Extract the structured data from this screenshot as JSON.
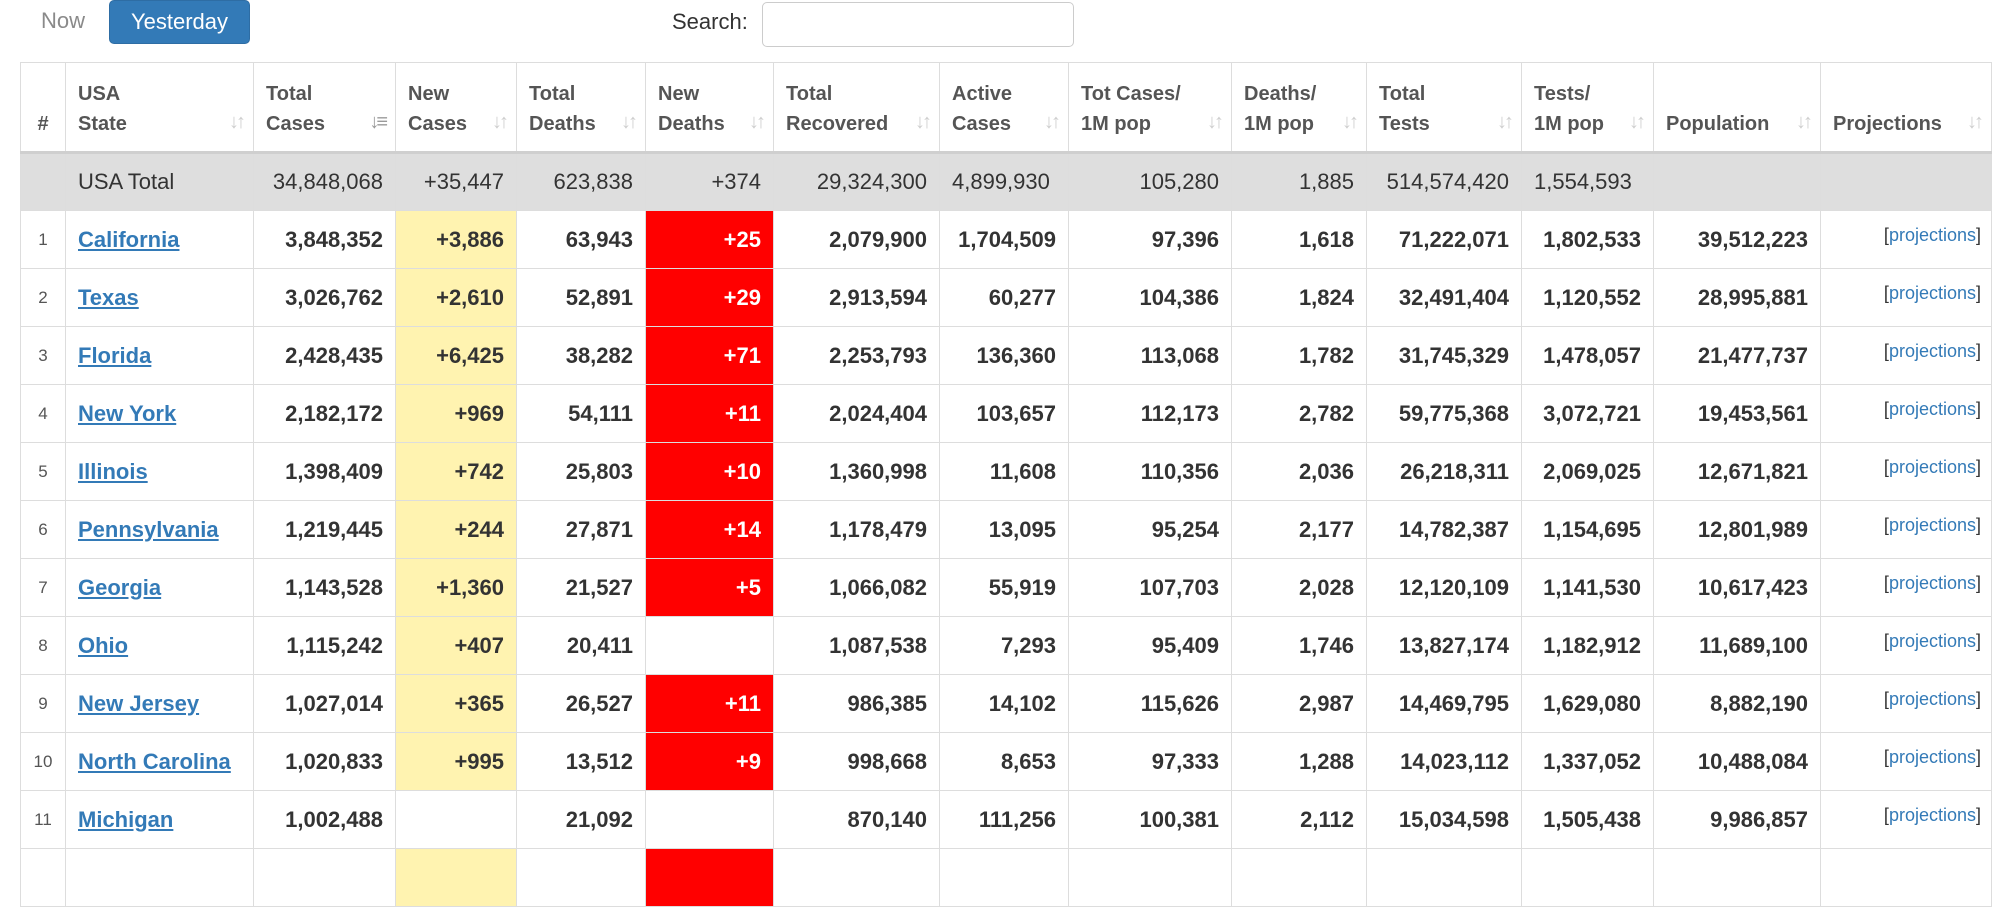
{
  "tabs": {
    "now": "Now",
    "yesterday": "Yesterday"
  },
  "search": {
    "label": "Search:",
    "value": "",
    "placeholder": ""
  },
  "columns": {
    "num": "#",
    "state": [
      "USA",
      "State"
    ],
    "total_cases": [
      "Total",
      "Cases"
    ],
    "new_cases": [
      "New",
      "Cases"
    ],
    "total_deaths": [
      "Total",
      "Deaths"
    ],
    "new_deaths": [
      "New",
      "Deaths"
    ],
    "total_recovered": [
      "Total",
      "Recovered"
    ],
    "active_cases": [
      "Active",
      "Cases"
    ],
    "tot_cases_1m": [
      "Tot Cases/",
      "1M pop"
    ],
    "deaths_1m": [
      "Deaths/",
      "1M pop"
    ],
    "total_tests": [
      "Total",
      "Tests"
    ],
    "tests_1m": [
      "Tests/",
      "1M pop"
    ],
    "population": [
      "",
      "Population"
    ],
    "projections": [
      "",
      "Projections"
    ]
  },
  "sort_icon": "sort-arrows-icon",
  "total_row": {
    "state": "USA Total",
    "total_cases": "34,848,068",
    "new_cases": "+35,447",
    "total_deaths": "623,838",
    "new_deaths": "+374",
    "total_recovered": "29,324,300",
    "active_cases": "4,899,930",
    "tot_cases_1m": "105,280",
    "deaths_1m": "1,885",
    "total_tests": "514,574,420",
    "tests_1m": "1,554,593",
    "population": "",
    "projections": ""
  },
  "projections_label": "projections",
  "colors": {
    "new_cases_bg": "#fff3b0",
    "new_deaths_bg": "#ff0000",
    "link": "#337ab7",
    "tab_active": "#337ab7"
  },
  "rows": [
    {
      "num": "1",
      "state": "California",
      "total_cases": "3,848,352",
      "new_cases": "+3,886",
      "total_deaths": "63,943",
      "new_deaths": "+25",
      "total_recovered": "2,079,900",
      "active_cases": "1,704,509",
      "tot_cases_1m": "97,396",
      "deaths_1m": "1,618",
      "total_tests": "71,222,071",
      "tests_1m": "1,802,533",
      "population": "39,512,223"
    },
    {
      "num": "2",
      "state": "Texas",
      "total_cases": "3,026,762",
      "new_cases": "+2,610",
      "total_deaths": "52,891",
      "new_deaths": "+29",
      "total_recovered": "2,913,594",
      "active_cases": "60,277",
      "tot_cases_1m": "104,386",
      "deaths_1m": "1,824",
      "total_tests": "32,491,404",
      "tests_1m": "1,120,552",
      "population": "28,995,881"
    },
    {
      "num": "3",
      "state": "Florida",
      "total_cases": "2,428,435",
      "new_cases": "+6,425",
      "total_deaths": "38,282",
      "new_deaths": "+71",
      "total_recovered": "2,253,793",
      "active_cases": "136,360",
      "tot_cases_1m": "113,068",
      "deaths_1m": "1,782",
      "total_tests": "31,745,329",
      "tests_1m": "1,478,057",
      "population": "21,477,737"
    },
    {
      "num": "4",
      "state": "New York",
      "total_cases": "2,182,172",
      "new_cases": "+969",
      "total_deaths": "54,111",
      "new_deaths": "+11",
      "total_recovered": "2,024,404",
      "active_cases": "103,657",
      "tot_cases_1m": "112,173",
      "deaths_1m": "2,782",
      "total_tests": "59,775,368",
      "tests_1m": "3,072,721",
      "population": "19,453,561"
    },
    {
      "num": "5",
      "state": "Illinois",
      "total_cases": "1,398,409",
      "new_cases": "+742",
      "total_deaths": "25,803",
      "new_deaths": "+10",
      "total_recovered": "1,360,998",
      "active_cases": "11,608",
      "tot_cases_1m": "110,356",
      "deaths_1m": "2,036",
      "total_tests": "26,218,311",
      "tests_1m": "2,069,025",
      "population": "12,671,821"
    },
    {
      "num": "6",
      "state": "Pennsylvania",
      "total_cases": "1,219,445",
      "new_cases": "+244",
      "total_deaths": "27,871",
      "new_deaths": "+14",
      "total_recovered": "1,178,479",
      "active_cases": "13,095",
      "tot_cases_1m": "95,254",
      "deaths_1m": "2,177",
      "total_tests": "14,782,387",
      "tests_1m": "1,154,695",
      "population": "12,801,989"
    },
    {
      "num": "7",
      "state": "Georgia",
      "total_cases": "1,143,528",
      "new_cases": "+1,360",
      "total_deaths": "21,527",
      "new_deaths": "+5",
      "total_recovered": "1,066,082",
      "active_cases": "55,919",
      "tot_cases_1m": "107,703",
      "deaths_1m": "2,028",
      "total_tests": "12,120,109",
      "tests_1m": "1,141,530",
      "population": "10,617,423"
    },
    {
      "num": "8",
      "state": "Ohio",
      "total_cases": "1,115,242",
      "new_cases": "+407",
      "total_deaths": "20,411",
      "new_deaths": "",
      "total_recovered": "1,087,538",
      "active_cases": "7,293",
      "tot_cases_1m": "95,409",
      "deaths_1m": "1,746",
      "total_tests": "13,827,174",
      "tests_1m": "1,182,912",
      "population": "11,689,100"
    },
    {
      "num": "9",
      "state": "New Jersey",
      "total_cases": "1,027,014",
      "new_cases": "+365",
      "total_deaths": "26,527",
      "new_deaths": "+11",
      "total_recovered": "986,385",
      "active_cases": "14,102",
      "tot_cases_1m": "115,626",
      "deaths_1m": "2,987",
      "total_tests": "14,469,795",
      "tests_1m": "1,629,080",
      "population": "8,882,190"
    },
    {
      "num": "10",
      "state": "North Carolina",
      "total_cases": "1,020,833",
      "new_cases": "+995",
      "total_deaths": "13,512",
      "new_deaths": "+9",
      "total_recovered": "998,668",
      "active_cases": "8,653",
      "tot_cases_1m": "97,333",
      "deaths_1m": "1,288",
      "total_tests": "14,023,112",
      "tests_1m": "1,337,052",
      "population": "10,488,084"
    },
    {
      "num": "11",
      "state": "Michigan",
      "total_cases": "1,002,488",
      "new_cases": "",
      "total_deaths": "21,092",
      "new_deaths": "",
      "total_recovered": "870,140",
      "active_cases": "111,256",
      "tot_cases_1m": "100,381",
      "deaths_1m": "2,112",
      "total_tests": "15,034,598",
      "tests_1m": "1,505,438",
      "population": "9,986,857"
    },
    {
      "num": "",
      "state": "",
      "total_cases": "",
      "new_cases": "",
      "total_deaths": "",
      "new_deaths": "",
      "total_recovered": "",
      "active_cases": "",
      "tot_cases_1m": "",
      "deaths_1m": "",
      "total_tests": "",
      "tests_1m": "",
      "population": "",
      "partial": true,
      "new_cases_highlight": true,
      "new_deaths_highlight": true
    }
  ]
}
